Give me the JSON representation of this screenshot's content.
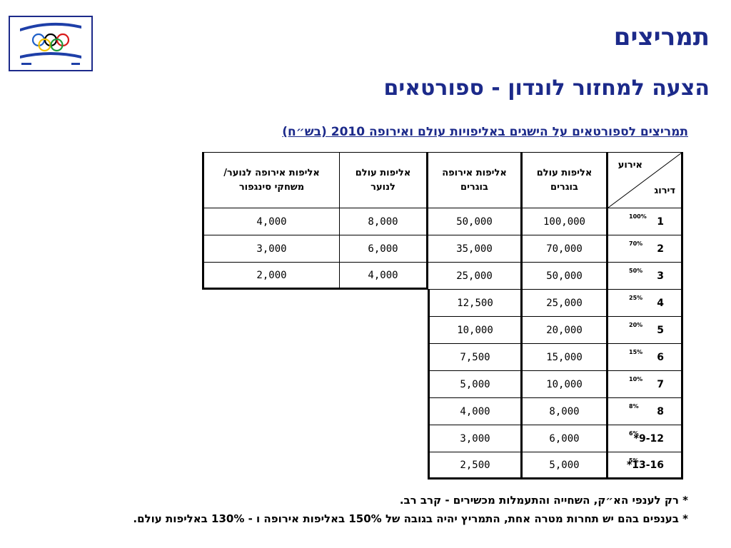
{
  "slide": {
    "title": "תמריצים",
    "subtitle": "הצעה למחזור לונדון - ספורטאים",
    "caption": "תמריצים לספורטאים על הישגים באליפויות עולם ואירופה 2010 (בש״ח)"
  },
  "logo": {
    "name": "olympic-committee-logo",
    "colors": {
      "frame": "#1c2a8a",
      "stripe": "#1e3fa8",
      "ring_blue": "#1e5fc8",
      "ring_yellow": "#f2c300",
      "ring_black": "#000000",
      "ring_green": "#1f9a3a",
      "ring_red": "#d91a1a"
    }
  },
  "table": {
    "header": {
      "corner_event": "אירוע",
      "corner_rank": "דירוג",
      "world_adults": [
        "אליפות עולם",
        "בוגרים"
      ],
      "europe_adults": [
        "אליפות אירופה",
        "בוגרים"
      ],
      "world_youth": [
        "אליפות עולם",
        "לנוער"
      ],
      "europe_youth": [
        "אליפות אירופה לנוער/",
        "משחקי סינגפור"
      ]
    },
    "rows": [
      {
        "rank": "1",
        "pct": "100%",
        "world_adults": "100,000",
        "europe_adults": "50,000",
        "world_youth": "8,000",
        "europe_youth": "4,000"
      },
      {
        "rank": "2",
        "pct": "70%",
        "world_adults": "70,000",
        "europe_adults": "35,000",
        "world_youth": "6,000",
        "europe_youth": "3,000"
      },
      {
        "rank": "3",
        "pct": "50%",
        "world_adults": "50,000",
        "europe_adults": "25,000",
        "world_youth": "4,000",
        "europe_youth": "2,000"
      },
      {
        "rank": "4",
        "pct": "25%",
        "world_adults": "25,000",
        "europe_adults": "12,500"
      },
      {
        "rank": "5",
        "pct": "20%",
        "world_adults": "20,000",
        "europe_adults": "10,000"
      },
      {
        "rank": "6",
        "pct": "15%",
        "world_adults": "15,000",
        "europe_adults": "7,500"
      },
      {
        "rank": "7",
        "pct": "10%",
        "world_adults": "10,000",
        "europe_adults": "5,000"
      },
      {
        "rank": "8",
        "pct": "8%",
        "world_adults": "8,000",
        "europe_adults": "4,000"
      },
      {
        "rank": "*9-12",
        "pct": "6%",
        "world_adults": "6,000",
        "europe_adults": "3,000"
      },
      {
        "rank": "*13-16",
        "pct": "5%",
        "world_adults": "5,000",
        "europe_adults": "2,500"
      }
    ]
  },
  "notes": [
    "* רק לענפי הא״ק, השחייה והתעמלות מכשירים - קרב רב.",
    "* בענפים בהם יש תחרות מטרה אחת, התמריץ יהיה בגובה של 150% באליפות אירופה ו - 130% באליפות עולם."
  ]
}
